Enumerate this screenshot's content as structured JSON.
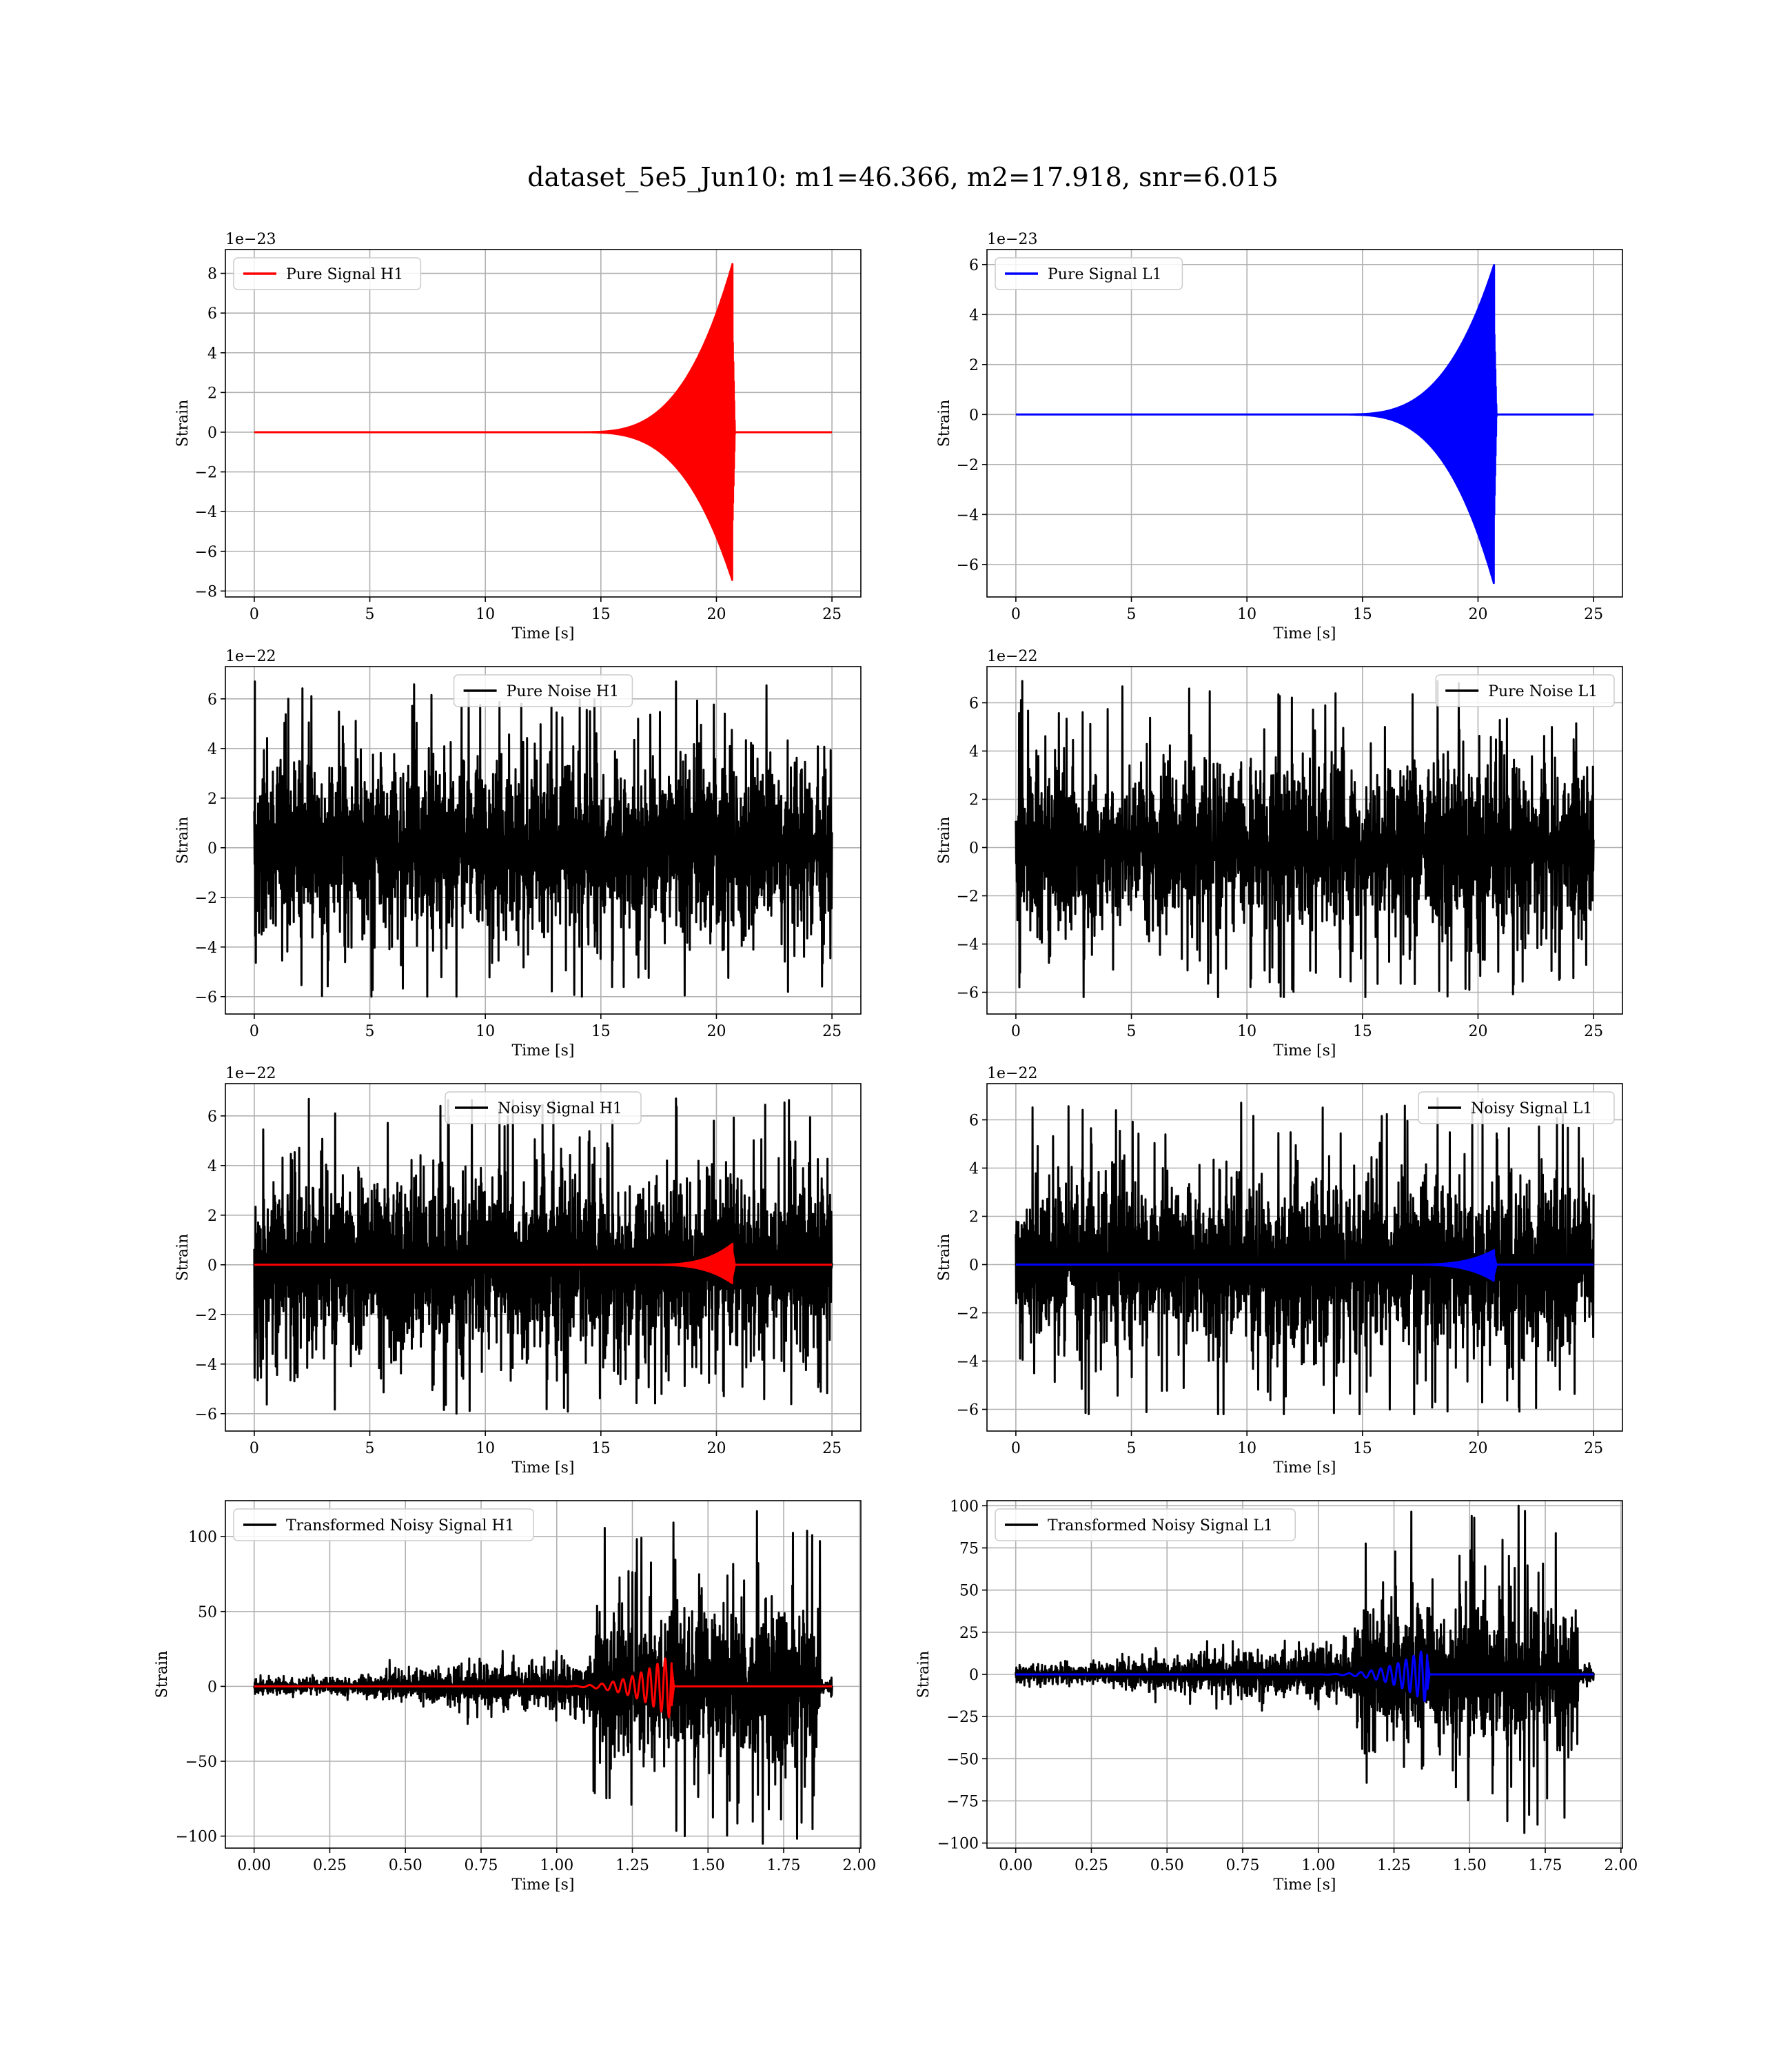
{
  "figure": {
    "title": "dataset_5e5_Jun10: m1=46.366, m2=17.918, snr=6.015"
  },
  "colors": {
    "H1": "#ff0000",
    "L1": "#0000ff",
    "noise": "#000000",
    "grid": "#b0b0b0"
  },
  "chart_data": [
    {
      "id": "pure-signal-h1",
      "type": "line",
      "xlabel": "Time [s]",
      "ylabel": "Strain",
      "offset_text": "1e−23",
      "xlim": [
        -1.25,
        26.25
      ],
      "ylim": [
        -8.3,
        9.2
      ],
      "xticks": [
        0,
        5,
        10,
        15,
        20,
        25
      ],
      "xtick_labels": [
        "0",
        "5",
        "10",
        "15",
        "20",
        "25"
      ],
      "yticks": [
        -8,
        -6,
        -4,
        -2,
        0,
        2,
        4,
        6,
        8
      ],
      "ytick_labels": [
        "−8",
        "−6",
        "−4",
        "−2",
        "0",
        "2",
        "4",
        "6",
        "8"
      ],
      "legend": "upper left",
      "grid": true,
      "series": [
        {
          "name": "Pure Signal H1",
          "color": "#ff0000",
          "kind": "chirp",
          "t_start": 0,
          "t_end": 25,
          "t_merger": 20.7,
          "peak_pos": 8.5,
          "peak_neg": -7.5,
          "onset": 14
        }
      ]
    },
    {
      "id": "pure-signal-l1",
      "type": "line",
      "xlabel": "Time [s]",
      "ylabel": "Strain",
      "offset_text": "1e−23",
      "xlim": [
        -1.25,
        26.25
      ],
      "ylim": [
        -7.3,
        6.6
      ],
      "xticks": [
        0,
        5,
        10,
        15,
        20,
        25
      ],
      "xtick_labels": [
        "0",
        "5",
        "10",
        "15",
        "20",
        "25"
      ],
      "yticks": [
        -6,
        -4,
        -2,
        0,
        2,
        4,
        6
      ],
      "ytick_labels": [
        "−6",
        "−4",
        "−2",
        "0",
        "2",
        "4",
        "6"
      ],
      "legend": "upper left",
      "grid": true,
      "series": [
        {
          "name": "Pure Signal L1",
          "color": "#0000ff",
          "kind": "chirp",
          "t_start": 0,
          "t_end": 25,
          "t_merger": 20.7,
          "peak_pos": 6.0,
          "peak_neg": -6.8,
          "onset": 14
        }
      ]
    },
    {
      "id": "pure-noise-h1",
      "type": "line",
      "xlabel": "Time [s]",
      "ylabel": "Strain",
      "offset_text": "1e−22",
      "xlim": [
        -1.25,
        26.25
      ],
      "ylim": [
        -6.7,
        7.3
      ],
      "xticks": [
        0,
        5,
        10,
        15,
        20,
        25
      ],
      "xtick_labels": [
        "0",
        "5",
        "10",
        "15",
        "20",
        "25"
      ],
      "yticks": [
        -6,
        -4,
        -2,
        0,
        2,
        4,
        6
      ],
      "ytick_labels": [
        "−6",
        "−4",
        "−2",
        "0",
        "2",
        "4",
        "6"
      ],
      "legend": "upper center",
      "grid": true,
      "series": [
        {
          "name": "Pure Noise H1",
          "color": "#000000",
          "kind": "noise",
          "t_start": 0,
          "t_end": 25,
          "band": 3.6,
          "spike_max": 6.7,
          "spike_min": -6.0
        }
      ]
    },
    {
      "id": "pure-noise-l1",
      "type": "line",
      "xlabel": "Time [s]",
      "ylabel": "Strain",
      "offset_text": "1e−22",
      "xlim": [
        -1.25,
        26.25
      ],
      "ylim": [
        -6.9,
        7.5
      ],
      "xticks": [
        0,
        5,
        10,
        15,
        20,
        25
      ],
      "xtick_labels": [
        "0",
        "5",
        "10",
        "15",
        "20",
        "25"
      ],
      "yticks": [
        -6,
        -4,
        -2,
        0,
        2,
        4,
        6
      ],
      "ytick_labels": [
        "−6",
        "−4",
        "−2",
        "0",
        "2",
        "4",
        "6"
      ],
      "legend": "upper right",
      "grid": true,
      "series": [
        {
          "name": "Pure Noise L1",
          "color": "#000000",
          "kind": "noise",
          "t_start": 0,
          "t_end": 25,
          "band": 3.6,
          "spike_max": 6.9,
          "spike_min": -6.2
        }
      ]
    },
    {
      "id": "noisy-signal-h1",
      "type": "line",
      "xlabel": "Time [s]",
      "ylabel": "Strain",
      "offset_text": "1e−22",
      "xlim": [
        -1.25,
        26.25
      ],
      "ylim": [
        -6.7,
        7.3
      ],
      "xticks": [
        0,
        5,
        10,
        15,
        20,
        25
      ],
      "xtick_labels": [
        "0",
        "5",
        "10",
        "15",
        "20",
        "25"
      ],
      "yticks": [
        -6,
        -4,
        -2,
        0,
        2,
        4,
        6
      ],
      "ytick_labels": [
        "−6",
        "−4",
        "−2",
        "0",
        "2",
        "4",
        "6"
      ],
      "legend": "upper center",
      "grid": true,
      "series": [
        {
          "name": "Noisy Signal H1",
          "color": "#000000",
          "kind": "noise",
          "t_start": 0,
          "t_end": 25,
          "band": 3.6,
          "spike_max": 6.7,
          "spike_min": -6.0
        },
        {
          "color": "#ff0000",
          "kind": "chirp",
          "t_start": 0,
          "t_end": 25,
          "t_merger": 20.7,
          "peak_pos": 0.85,
          "peak_neg": -0.75,
          "onset": 17
        }
      ]
    },
    {
      "id": "noisy-signal-l1",
      "type": "line",
      "xlabel": "Time [s]",
      "ylabel": "Strain",
      "offset_text": "1e−22",
      "xlim": [
        -1.25,
        26.25
      ],
      "ylim": [
        -6.9,
        7.5
      ],
      "xticks": [
        0,
        5,
        10,
        15,
        20,
        25
      ],
      "xtick_labels": [
        "0",
        "5",
        "10",
        "15",
        "20",
        "25"
      ],
      "yticks": [
        -6,
        -4,
        -2,
        0,
        2,
        4,
        6
      ],
      "ytick_labels": [
        "−6",
        "−4",
        "−2",
        "0",
        "2",
        "4",
        "6"
      ],
      "legend": "upper right",
      "grid": true,
      "series": [
        {
          "name": "Noisy Signal L1",
          "color": "#000000",
          "kind": "noise",
          "t_start": 0,
          "t_end": 25,
          "band": 3.6,
          "spike_max": 6.9,
          "spike_min": -6.2
        },
        {
          "color": "#0000ff",
          "kind": "chirp",
          "t_start": 0,
          "t_end": 25,
          "t_merger": 20.7,
          "peak_pos": 0.6,
          "peak_neg": -0.68,
          "onset": 17
        }
      ]
    },
    {
      "id": "transformed-noisy-signal-h1",
      "type": "line",
      "xlabel": "Time [s]",
      "ylabel": "Strain",
      "offset_text": "",
      "xlim": [
        -0.095,
        2.005
      ],
      "ylim": [
        -108,
        124
      ],
      "xticks": [
        0,
        0.25,
        0.5,
        0.75,
        1.0,
        1.25,
        1.5,
        1.75,
        2.0
      ],
      "xtick_labels": [
        "0.00",
        "0.25",
        "0.50",
        "0.75",
        "1.00",
        "1.25",
        "1.50",
        "1.75",
        "2.00"
      ],
      "yticks": [
        -100,
        -50,
        0,
        50,
        100
      ],
      "ytick_labels": [
        "−100",
        "−50",
        "0",
        "50",
        "100"
      ],
      "legend": "upper left",
      "grid": true,
      "series": [
        {
          "name": "Transformed Noisy Signal H1",
          "color": "#000000",
          "kind": "tnoise",
          "t_start": 0,
          "t_end": 1.91,
          "t_jump": 1.12,
          "t_stop": 1.87,
          "band_low": 5,
          "band_high": 45,
          "spike_max": 117,
          "spike_min": -105
        },
        {
          "color": "#ff0000",
          "kind": "tchirp",
          "t_start": 0,
          "t_end": 1.91,
          "t_merger": 1.38,
          "peak_pos": 22,
          "peak_neg": -22,
          "onset": 0.95
        }
      ]
    },
    {
      "id": "transformed-noisy-signal-l1",
      "type": "line",
      "xlabel": "Time [s]",
      "ylabel": "Strain",
      "offset_text": "",
      "xlim": [
        -0.095,
        2.005
      ],
      "ylim": [
        -103,
        103
      ],
      "xticks": [
        0,
        0.25,
        0.5,
        0.75,
        1.0,
        1.25,
        1.5,
        1.75,
        2.0
      ],
      "xtick_labels": [
        "0.00",
        "0.25",
        "0.50",
        "0.75",
        "1.00",
        "1.25",
        "1.50",
        "1.75",
        "2.00"
      ],
      "yticks": [
        -100,
        -75,
        -50,
        -25,
        0,
        25,
        50,
        75,
        100
      ],
      "ytick_labels": [
        "−100",
        "−75",
        "−50",
        "−25",
        "0",
        "25",
        "50",
        "75",
        "100"
      ],
      "legend": "upper left",
      "grid": true,
      "series": [
        {
          "name": "Transformed Noisy Signal L1",
          "color": "#000000",
          "kind": "tnoise",
          "t_start": 0,
          "t_end": 1.91,
          "t_jump": 1.12,
          "t_stop": 1.86,
          "band_low": 5,
          "band_high": 38,
          "spike_max": 100,
          "spike_min": -94
        },
        {
          "color": "#0000ff",
          "kind": "tchirp",
          "t_start": 0,
          "t_end": 1.91,
          "t_merger": 1.36,
          "peak_pos": 16,
          "peak_neg": -17,
          "onset": 0.95
        }
      ]
    }
  ]
}
